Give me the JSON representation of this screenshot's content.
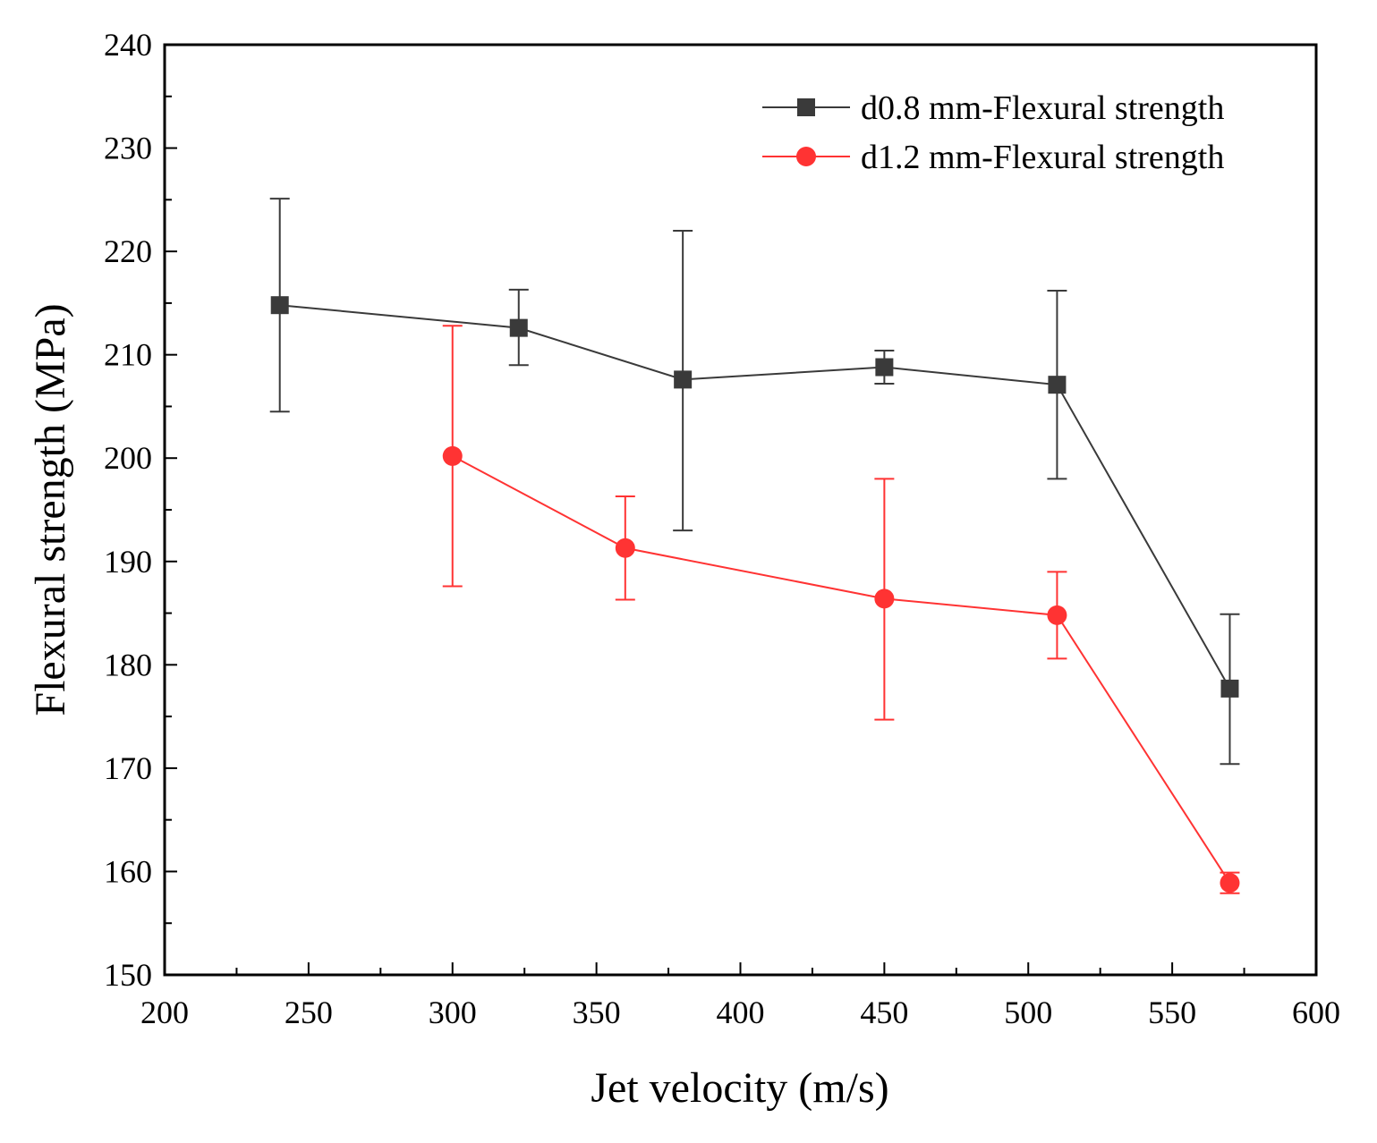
{
  "chart_data": {
    "type": "line",
    "title": "",
    "xlabel": "Jet velocity (m/s)",
    "ylabel": "Flexural strength (MPa)",
    "xlim": [
      200,
      600
    ],
    "ylim": [
      150,
      240
    ],
    "x_ticks": [
      "200",
      "250",
      "300",
      "350",
      "400",
      "450",
      "500",
      "550",
      "600"
    ],
    "y_ticks": [
      "150",
      "160",
      "170",
      "180",
      "190",
      "200",
      "210",
      "220",
      "230",
      "240"
    ],
    "x_tick_values": [
      200,
      250,
      300,
      350,
      400,
      450,
      500,
      550,
      600
    ],
    "y_tick_values": [
      150,
      160,
      170,
      180,
      190,
      200,
      210,
      220,
      230,
      240
    ],
    "grid": false,
    "legend_position": "top-right",
    "series": [
      {
        "name": "d0.8 mm-Flexural strength",
        "color": "#3a3a3a",
        "marker": "square",
        "x": [
          240,
          323,
          380,
          450,
          510,
          570
        ],
        "y": [
          214.8,
          212.6,
          207.6,
          208.8,
          207.1,
          177.7
        ],
        "y_low": [
          204.5,
          209.0,
          193.0,
          207.2,
          198.0,
          170.4
        ],
        "y_high": [
          225.1,
          216.3,
          222.0,
          210.4,
          216.2,
          184.9
        ]
      },
      {
        "name": "d1.2 mm-Flexural strength",
        "color": "#ff3333",
        "marker": "circle",
        "x": [
          300,
          360,
          450,
          510,
          570
        ],
        "y": [
          200.2,
          191.3,
          186.4,
          184.8,
          158.9
        ],
        "y_low": [
          187.6,
          186.3,
          174.7,
          180.6,
          157.9
        ],
        "y_high": [
          212.8,
          196.3,
          198.0,
          189.0,
          159.9
        ]
      }
    ]
  }
}
